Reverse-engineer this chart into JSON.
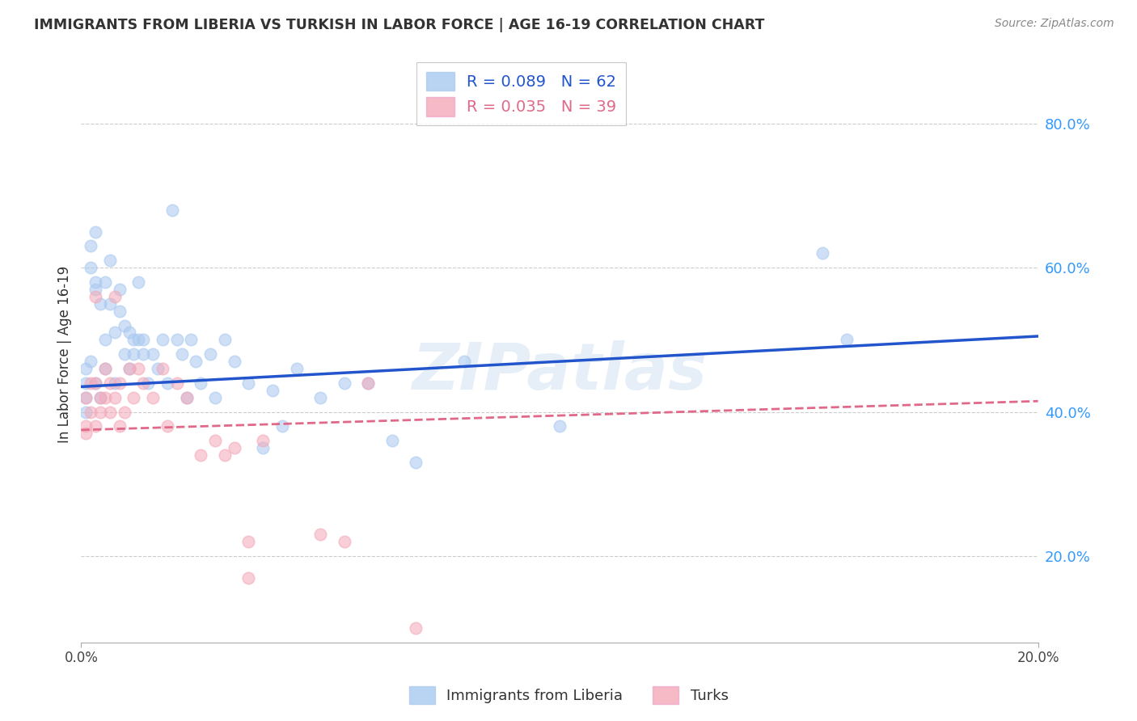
{
  "title": "IMMIGRANTS FROM LIBERIA VS TURKISH IN LABOR FORCE | AGE 16-19 CORRELATION CHART",
  "source": "Source: ZipAtlas.com",
  "ylabel": "In Labor Force | Age 16-19",
  "liberia_R": 0.089,
  "liberia_N": 62,
  "turks_R": 0.035,
  "turks_N": 39,
  "liberia_color": "#a8c8f0",
  "turks_color": "#f4a8b8",
  "liberia_line_color": "#2255cc",
  "turks_line_color": "#e06888",
  "watermark": "ZIPatlas",
  "xlim": [
    0.0,
    0.2
  ],
  "ylim": [
    0.08,
    0.88
  ],
  "lib_line_x0": 0.0,
  "lib_line_y0": 0.435,
  "lib_line_x1": 0.2,
  "lib_line_y1": 0.505,
  "turk_line_x0": 0.0,
  "turk_line_y0": 0.375,
  "turk_line_x1": 0.2,
  "turk_line_y1": 0.415,
  "liberia_x": [
    0.001,
    0.001,
    0.001,
    0.001,
    0.002,
    0.002,
    0.002,
    0.003,
    0.003,
    0.003,
    0.003,
    0.004,
    0.004,
    0.005,
    0.005,
    0.005,
    0.006,
    0.006,
    0.007,
    0.007,
    0.008,
    0.008,
    0.009,
    0.009,
    0.01,
    0.01,
    0.011,
    0.011,
    0.012,
    0.012,
    0.013,
    0.013,
    0.014,
    0.015,
    0.016,
    0.017,
    0.018,
    0.019,
    0.02,
    0.021,
    0.022,
    0.023,
    0.024,
    0.025,
    0.027,
    0.028,
    0.03,
    0.032,
    0.035,
    0.038,
    0.04,
    0.042,
    0.045,
    0.05,
    0.055,
    0.06,
    0.065,
    0.07,
    0.08,
    0.1,
    0.155,
    0.16
  ],
  "liberia_y": [
    0.44,
    0.46,
    0.42,
    0.4,
    0.6,
    0.63,
    0.47,
    0.65,
    0.44,
    0.57,
    0.58,
    0.42,
    0.55,
    0.58,
    0.5,
    0.46,
    0.55,
    0.61,
    0.51,
    0.44,
    0.54,
    0.57,
    0.48,
    0.52,
    0.46,
    0.51,
    0.5,
    0.48,
    0.58,
    0.5,
    0.48,
    0.5,
    0.44,
    0.48,
    0.46,
    0.5,
    0.44,
    0.68,
    0.5,
    0.48,
    0.42,
    0.5,
    0.47,
    0.44,
    0.48,
    0.42,
    0.5,
    0.47,
    0.44,
    0.35,
    0.43,
    0.38,
    0.46,
    0.42,
    0.44,
    0.44,
    0.36,
    0.33,
    0.47,
    0.38,
    0.62,
    0.5
  ],
  "turks_x": [
    0.001,
    0.001,
    0.001,
    0.002,
    0.002,
    0.003,
    0.003,
    0.003,
    0.004,
    0.004,
    0.005,
    0.005,
    0.006,
    0.006,
    0.007,
    0.007,
    0.008,
    0.008,
    0.009,
    0.01,
    0.011,
    0.012,
    0.013,
    0.015,
    0.017,
    0.018,
    0.02,
    0.022,
    0.025,
    0.028,
    0.03,
    0.032,
    0.035,
    0.035,
    0.038,
    0.05,
    0.055,
    0.06,
    0.07
  ],
  "turks_y": [
    0.38,
    0.42,
    0.37,
    0.44,
    0.4,
    0.56,
    0.44,
    0.38,
    0.42,
    0.4,
    0.46,
    0.42,
    0.44,
    0.4,
    0.42,
    0.56,
    0.38,
    0.44,
    0.4,
    0.46,
    0.42,
    0.46,
    0.44,
    0.42,
    0.46,
    0.38,
    0.44,
    0.42,
    0.34,
    0.36,
    0.34,
    0.35,
    0.22,
    0.17,
    0.36,
    0.23,
    0.22,
    0.44,
    0.1
  ]
}
